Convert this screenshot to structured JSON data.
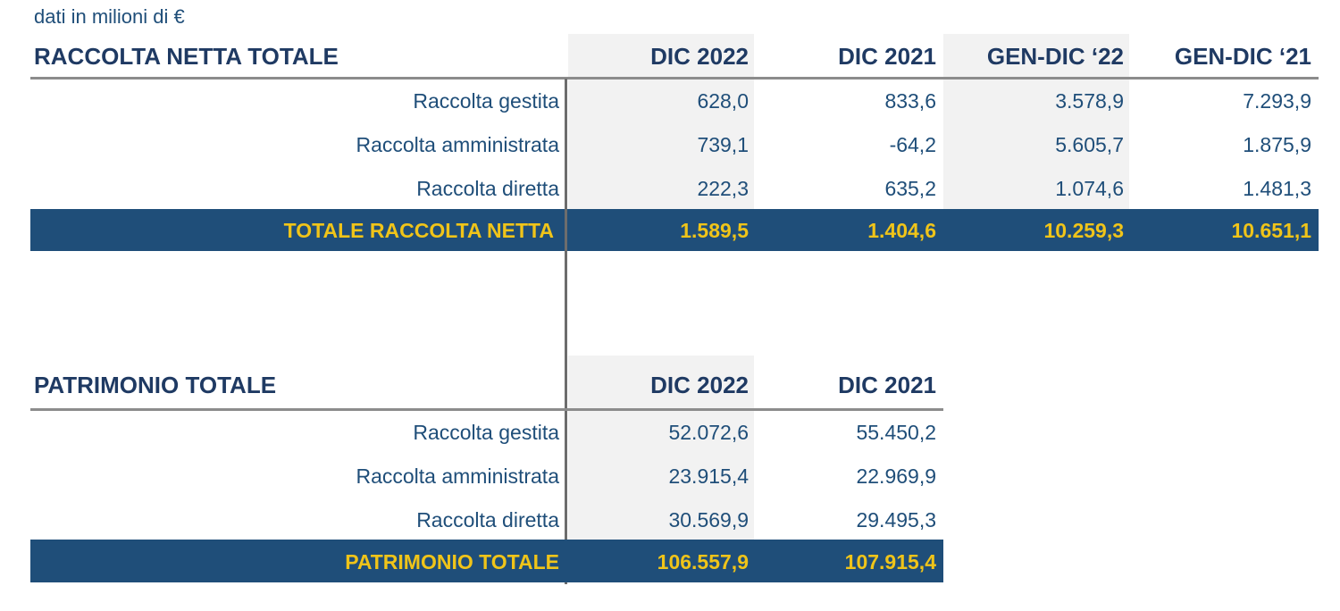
{
  "units_note": "dati in milioni di €",
  "raccolta": {
    "title": "RACCOLTA NETTA TOTALE",
    "columns": [
      "DIC 2022",
      "DIC 2021",
      "GEN-DIC ‘22",
      "GEN-DIC ‘21"
    ],
    "rows": [
      {
        "label": "Raccolta gestita",
        "values": [
          "628,0",
          "833,6",
          "3.578,9",
          "7.293,9"
        ]
      },
      {
        "label": "Raccolta amministrata",
        "values": [
          "739,1",
          "-64,2",
          "5.605,7",
          "1.875,9"
        ]
      },
      {
        "label": "Raccolta diretta",
        "values": [
          "222,3",
          "635,2",
          "1.074,6",
          "1.481,3"
        ]
      }
    ],
    "total": {
      "label": "TOTALE RACCOLTA NETTA",
      "values": [
        "1.589,5",
        "1.404,6",
        "10.259,3",
        "10.651,1"
      ]
    }
  },
  "patrimonio": {
    "title": "PATRIMONIO TOTALE",
    "columns": [
      "DIC 2022",
      "DIC 2021"
    ],
    "rows": [
      {
        "label": "Raccolta gestita",
        "values": [
          "52.072,6",
          "55.450,2"
        ]
      },
      {
        "label": "Raccolta amministrata",
        "values": [
          "23.915,4",
          "22.969,9"
        ]
      },
      {
        "label": "Raccolta diretta",
        "values": [
          "30.569,9",
          "29.495,3"
        ]
      }
    ],
    "total": {
      "label": "PATRIMONIO TOTALE",
      "values": [
        "106.557,9",
        "107.915,4"
      ]
    }
  },
  "colors": {
    "header_text": "#1f3a63",
    "total_bar": "#1f4e79",
    "total_text": "#f0c419",
    "shade": "#f2f2f2"
  }
}
